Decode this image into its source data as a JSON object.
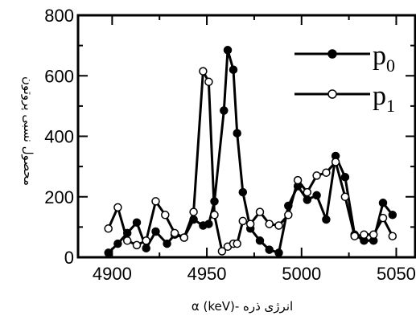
{
  "chart_data": {
    "type": "line",
    "xlabel": "انرژی ذره -α (keV)",
    "ylabel": "محصول نسبی پروتون",
    "xlim": [
      4882,
      5060
    ],
    "ylim": [
      0,
      800
    ],
    "xticks": [
      4900,
      4950,
      5000,
      5050
    ],
    "yticks": [
      0,
      200,
      400,
      600,
      800
    ],
    "legend_position": "top-right",
    "grid": false,
    "series": [
      {
        "name": "p",
        "subscript": "0",
        "marker": "filled-circle",
        "color": "#000000",
        "x": [
          4898,
          4903,
          4908,
          4913,
          4918,
          4923,
          4929,
          4933,
          4938,
          4943,
          4948,
          4951,
          4954,
          4959,
          4961,
          4964,
          4966,
          4969,
          4973,
          4978,
          4983,
          4988,
          4993,
          4998,
          5003,
          5008,
          5013,
          5018,
          5023,
          5028,
          5033,
          5038,
          5043,
          5048
        ],
        "y": [
          15,
          45,
          80,
          115,
          30,
          85,
          45,
          75,
          65,
          125,
          105,
          110,
          185,
          485,
          685,
          620,
          410,
          215,
          95,
          55,
          25,
          15,
          170,
          235,
          190,
          205,
          125,
          335,
          265,
          75,
          55,
          55,
          180,
          140
        ]
      },
      {
        "name": "p",
        "subscript": "1",
        "marker": "open-circle",
        "color": "#000000",
        "x": [
          4898,
          4903,
          4908,
          4913,
          4918,
          4923,
          4928,
          4933,
          4938,
          4943,
          4948,
          4951,
          4954,
          4958,
          4961,
          4964,
          4966,
          4969,
          4973,
          4978,
          4983,
          4988,
          4993,
          4998,
          5003,
          5008,
          5013,
          5018,
          5023,
          5028,
          5033,
          5038,
          5043,
          5048
        ],
        "y": [
          95,
          165,
          55,
          40,
          55,
          185,
          140,
          80,
          65,
          150,
          615,
          580,
          140,
          20,
          35,
          45,
          45,
          120,
          110,
          150,
          110,
          105,
          140,
          255,
          215,
          270,
          280,
          315,
          200,
          70,
          75,
          75,
          130,
          70
        ]
      }
    ]
  }
}
